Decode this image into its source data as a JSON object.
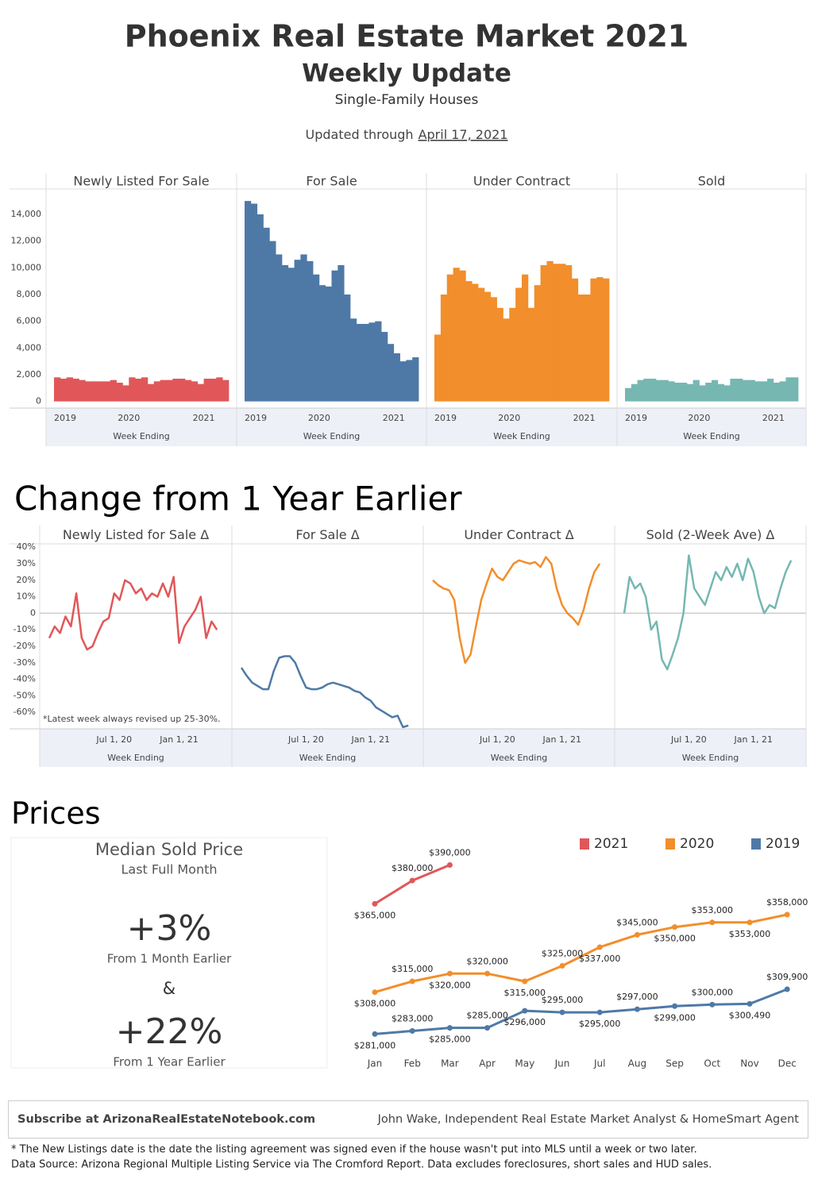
{
  "header": {
    "title": "Phoenix Real Estate Market 2021",
    "subtitle": "Weekly Update",
    "property_type": "Single-Family Houses",
    "updated_prefix": "Updated through",
    "updated_date": "April 17, 2021"
  },
  "chart_data": [
    {
      "type": "bar",
      "categories": [
        "2019",
        null,
        null,
        null,
        null,
        null,
        null,
        null,
        null,
        null,
        null,
        null,
        "2020",
        null,
        null,
        null,
        null,
        null,
        null,
        null,
        null,
        null,
        null,
        null,
        "2021",
        null,
        null,
        null
      ],
      "xlabel": "Week Ending",
      "ylim": [
        -500,
        15900
      ],
      "yticks": [
        0,
        {
          "value": 2000,
          "label": "2,000"
        },
        {
          "value": 4000,
          "label": "4,000"
        },
        {
          "value": 6000,
          "label": "6,000"
        },
        {
          "value": 8000,
          "label": "8,000"
        },
        {
          "value": 10000,
          "label": "10,000"
        },
        {
          "value": 12000,
          "label": "12,000"
        },
        {
          "value": 14000,
          "label": "14,000"
        }
      ],
      "panels": [
        {
          "title": "Newly Listed For Sale",
          "color": "#e15759",
          "values": [
            1800,
            1700,
            1800,
            1700,
            1600,
            1500,
            1500,
            1500,
            1500,
            1600,
            1400,
            1200,
            1800,
            1700,
            1800,
            1300,
            1500,
            1600,
            1600,
            1700,
            1700,
            1600,
            1500,
            1300,
            1700,
            1700,
            1800,
            1600
          ]
        },
        {
          "title": "For Sale",
          "color": "#4e79a7",
          "values": [
            15000,
            14800,
            14000,
            13000,
            12000,
            11000,
            10200,
            10000,
            10600,
            11000,
            10500,
            9500,
            8700,
            8600,
            9800,
            10200,
            8000,
            6200,
            5800,
            5800,
            5900,
            6000,
            5200,
            4300,
            3600,
            3000,
            3100,
            3300
          ]
        },
        {
          "title": "Under Contract",
          "color": "#f28e2b",
          "values": [
            5000,
            8000,
            9500,
            10000,
            9800,
            9000,
            8800,
            8500,
            8200,
            7800,
            7000,
            6200,
            7000,
            8500,
            9500,
            7000,
            8700,
            10200,
            10500,
            10300,
            10300,
            10200,
            9200,
            8000,
            8000,
            9200,
            9300,
            9200
          ]
        },
        {
          "title": "Sold",
          "color": "#76b7b2",
          "values": [
            1000,
            1300,
            1600,
            1700,
            1700,
            1600,
            1600,
            1500,
            1400,
            1400,
            1300,
            1600,
            1200,
            1400,
            1600,
            1300,
            1200,
            1700,
            1700,
            1600,
            1600,
            1500,
            1500,
            1700,
            1400,
            1500,
            1800,
            1800
          ]
        }
      ]
    },
    {
      "type": "line",
      "title": "Change from 1 Year Earlier",
      "categories": [
        null,
        null,
        null,
        null,
        null,
        null,
        null,
        null,
        null,
        null,
        null,
        null,
        "Jul 1, 20",
        null,
        null,
        null,
        null,
        null,
        null,
        null,
        null,
        null,
        null,
        null,
        "Jan 1, 21",
        null,
        null,
        null,
        null,
        null,
        null,
        null
      ],
      "xlabel": "Week Ending",
      "ylim": [
        -70,
        42
      ],
      "yticks": [
        {
          "value": -60,
          "label": "-60%"
        },
        {
          "value": -50,
          "label": "-50%"
        },
        {
          "value": -40,
          "label": "-40%"
        },
        {
          "value": -30,
          "label": "-30%"
        },
        {
          "value": -20,
          "label": "-20%"
        },
        {
          "value": -10,
          "label": "-10%"
        },
        0,
        {
          "value": 10,
          "label": "10%"
        },
        {
          "value": 20,
          "label": "20%"
        },
        {
          "value": 30,
          "label": "30%"
        },
        {
          "value": 40,
          "label": "40%"
        }
      ],
      "annotation": "*Latest week always revised up 25-30%.",
      "panels": [
        {
          "title": "Newly Listed for Sale Δ",
          "color": "#e15759",
          "values": [
            -15,
            -8,
            -12,
            -2,
            -8,
            12,
            -15,
            -22,
            -20,
            -12,
            -5,
            -3,
            12,
            8,
            20,
            18,
            12,
            15,
            8,
            12,
            10,
            18,
            10,
            22,
            -18,
            -8,
            -3,
            2,
            10,
            -15,
            -5,
            -10
          ]
        },
        {
          "title": "For Sale Δ",
          "color": "#4e79a7",
          "values": [
            -33,
            -38,
            -42,
            -44,
            -46,
            -46,
            -35,
            -27,
            -26,
            -26,
            -30,
            -38,
            -45,
            -46,
            -46,
            -45,
            -43,
            -42,
            -43,
            -44,
            -45,
            -47,
            -48,
            -51,
            -53,
            -57,
            -59,
            -61,
            -63,
            -62,
            -69,
            -68
          ]
        },
        {
          "title": "Under Contract Δ",
          "color": "#f28e2b",
          "values": [
            20,
            17,
            15,
            14,
            8,
            -15,
            -30,
            -25,
            -8,
            8,
            18,
            27,
            22,
            20,
            25,
            30,
            32,
            31,
            30,
            31,
            28,
            34,
            30,
            15,
            5,
            0,
            -3,
            -7,
            2,
            15,
            25,
            30
          ]
        },
        {
          "title": "Sold (2-Week Ave) Δ",
          "color": "#76b7b2",
          "values": [
            0,
            22,
            15,
            18,
            10,
            -10,
            -5,
            -28,
            -34,
            -25,
            -15,
            0,
            35,
            15,
            10,
            5,
            15,
            25,
            20,
            28,
            22,
            30,
            20,
            33,
            25,
            10,
            0,
            5,
            3,
            15,
            25,
            32
          ]
        }
      ]
    },
    {
      "type": "line",
      "title": "Prices",
      "categories": [
        "Jan",
        "Feb",
        "Mar",
        "Apr",
        "May",
        "Jun",
        "Jul",
        "Aug",
        "Sep",
        "Oct",
        "Nov",
        "Dec"
      ],
      "ylim": [
        272000,
        400000
      ],
      "series": [
        {
          "name": "2021",
          "color": "#e15759",
          "values": [
            365000,
            380000,
            390000,
            null,
            null,
            null,
            null,
            null,
            null,
            null,
            null,
            null
          ],
          "value_labels": [
            "$365,000",
            "$380,000",
            "$390,000",
            null,
            null,
            null,
            null,
            null,
            null,
            null,
            null,
            null
          ]
        },
        {
          "name": "2020",
          "color": "#f28e2b",
          "values": [
            308000,
            315000,
            320000,
            320000,
            315000,
            325000,
            337000,
            345000,
            350000,
            353000,
            353000,
            358000
          ],
          "value_labels": [
            "$308,000",
            "$315,000",
            "$320,000",
            "$320,000",
            "$315,000",
            "$325,000",
            "$337,000",
            "$345,000",
            "$350,000",
            "$353,000",
            "$353,000",
            "$358,000"
          ]
        },
        {
          "name": "2019",
          "color": "#4e79a7",
          "values": [
            281000,
            283000,
            285000,
            285000,
            296000,
            295000,
            295000,
            297000,
            299000,
            300000,
            300490,
            309900
          ],
          "value_labels": [
            "$281,000",
            "$283,000",
            "$285,000",
            "$285,000",
            "$296,000",
            "$295,000",
            "$295,000",
            "$297,000",
            "$299,000",
            "$300,000",
            "$300,490",
            "$309,900"
          ]
        }
      ]
    }
  ],
  "kpi": {
    "title": "Median Sold Price",
    "subtitle": "Last Full Month",
    "month_change": "+3%",
    "month_caption": "From 1 Month Earlier",
    "joiner": "&",
    "year_change": "+22%",
    "year_caption": "From 1 Year Earlier"
  },
  "footer": {
    "subscribe": "Subscribe at ArizonaRealEstateNotebook.com",
    "author": "John Wake, Independent Real Estate Market Analyst & HomeSmart Agent",
    "note_1": "* The New Listings date is the date the listing agreement was signed even if the house wasn't put into MLS until a week or two later.",
    "note_2": "Data Source: Arizona Regional Multiple Listing Service via The Cromford Report. Data excludes foreclosures, short sales and HUD sales."
  }
}
